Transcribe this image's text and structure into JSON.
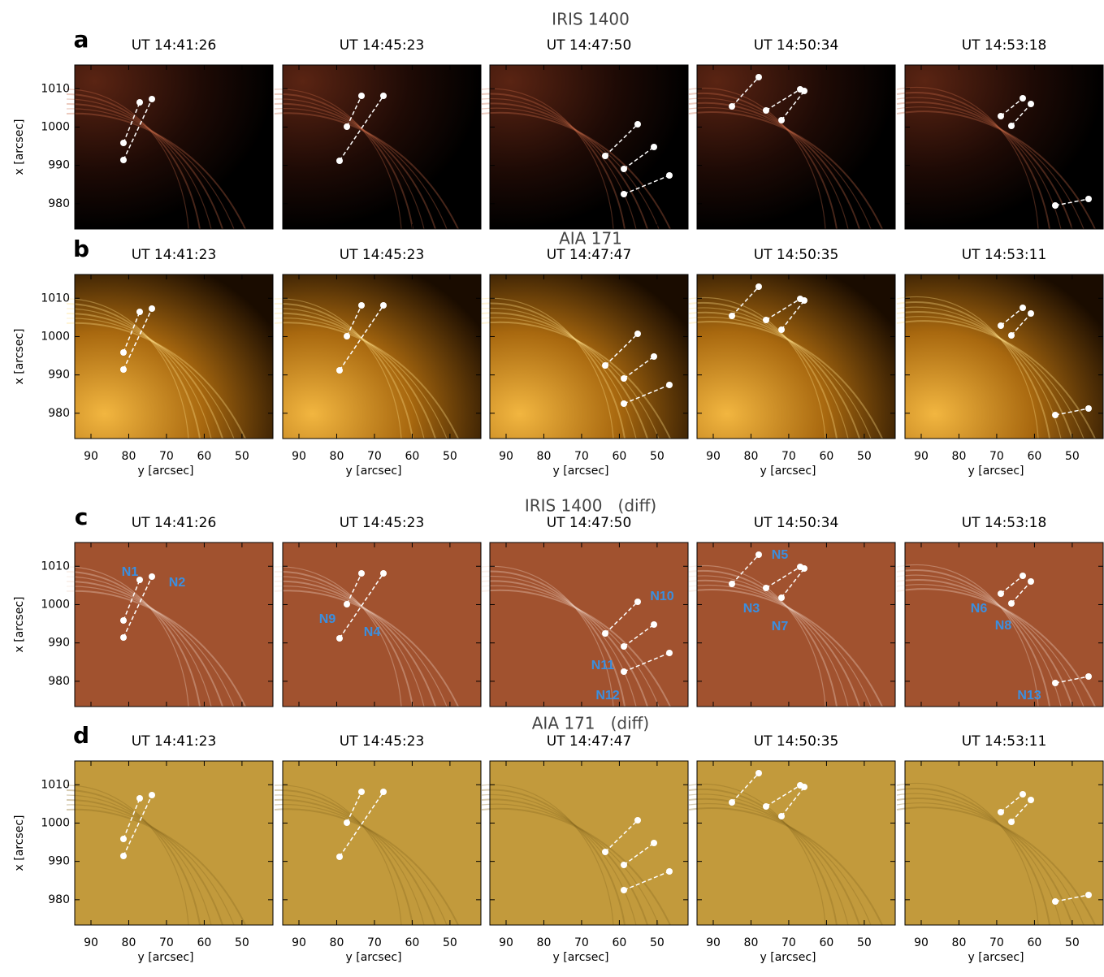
{
  "figure": {
    "rows": [
      {
        "letter": "a",
        "title": "IRIS 1400",
        "style": "iris",
        "times": [
          "UT 14:41:26",
          "UT 14:45:23",
          "UT 14:47:50",
          "UT 14:50:34",
          "UT 14:53:18"
        ]
      },
      {
        "letter": "b",
        "title": "AIA 171",
        "style": "aia",
        "times": [
          "UT 14:41:23",
          "UT 14:45:23",
          "UT 14:47:47",
          "UT 14:50:35",
          "UT 14:53:11"
        ]
      },
      {
        "letter": "c",
        "title": "IRIS 1400   (diff)",
        "style": "irisdiff",
        "times": [
          "UT 14:41:26",
          "UT 14:45:23",
          "UT 14:47:50",
          "UT 14:50:34",
          "UT 14:53:18"
        ],
        "labels": [
          [
            "N1",
            "N2"
          ],
          [
            "N9",
            "N4"
          ],
          [
            "N10",
            "N11",
            "N12"
          ],
          [
            "N5",
            "N3",
            "N7"
          ],
          [
            "N6",
            "N8",
            "N13"
          ]
        ]
      },
      {
        "letter": "d",
        "title": "AIA 171   (diff)",
        "style": "aiadiff",
        "times": [
          "UT 14:41:23",
          "UT 14:45:23",
          "UT 14:47:47",
          "UT 14:50:35",
          "UT 14:53:11"
        ]
      }
    ],
    "y_axis": {
      "label": "x [arcsec]",
      "lim": [
        973.4,
        1016.2
      ],
      "ticks": [
        980,
        990,
        1000,
        1010
      ]
    },
    "x_axis": {
      "label": "y [arcsec]",
      "lim": [
        94.3,
        41.8
      ],
      "ticks": [
        90,
        80,
        70,
        60,
        50
      ]
    }
  }
}
